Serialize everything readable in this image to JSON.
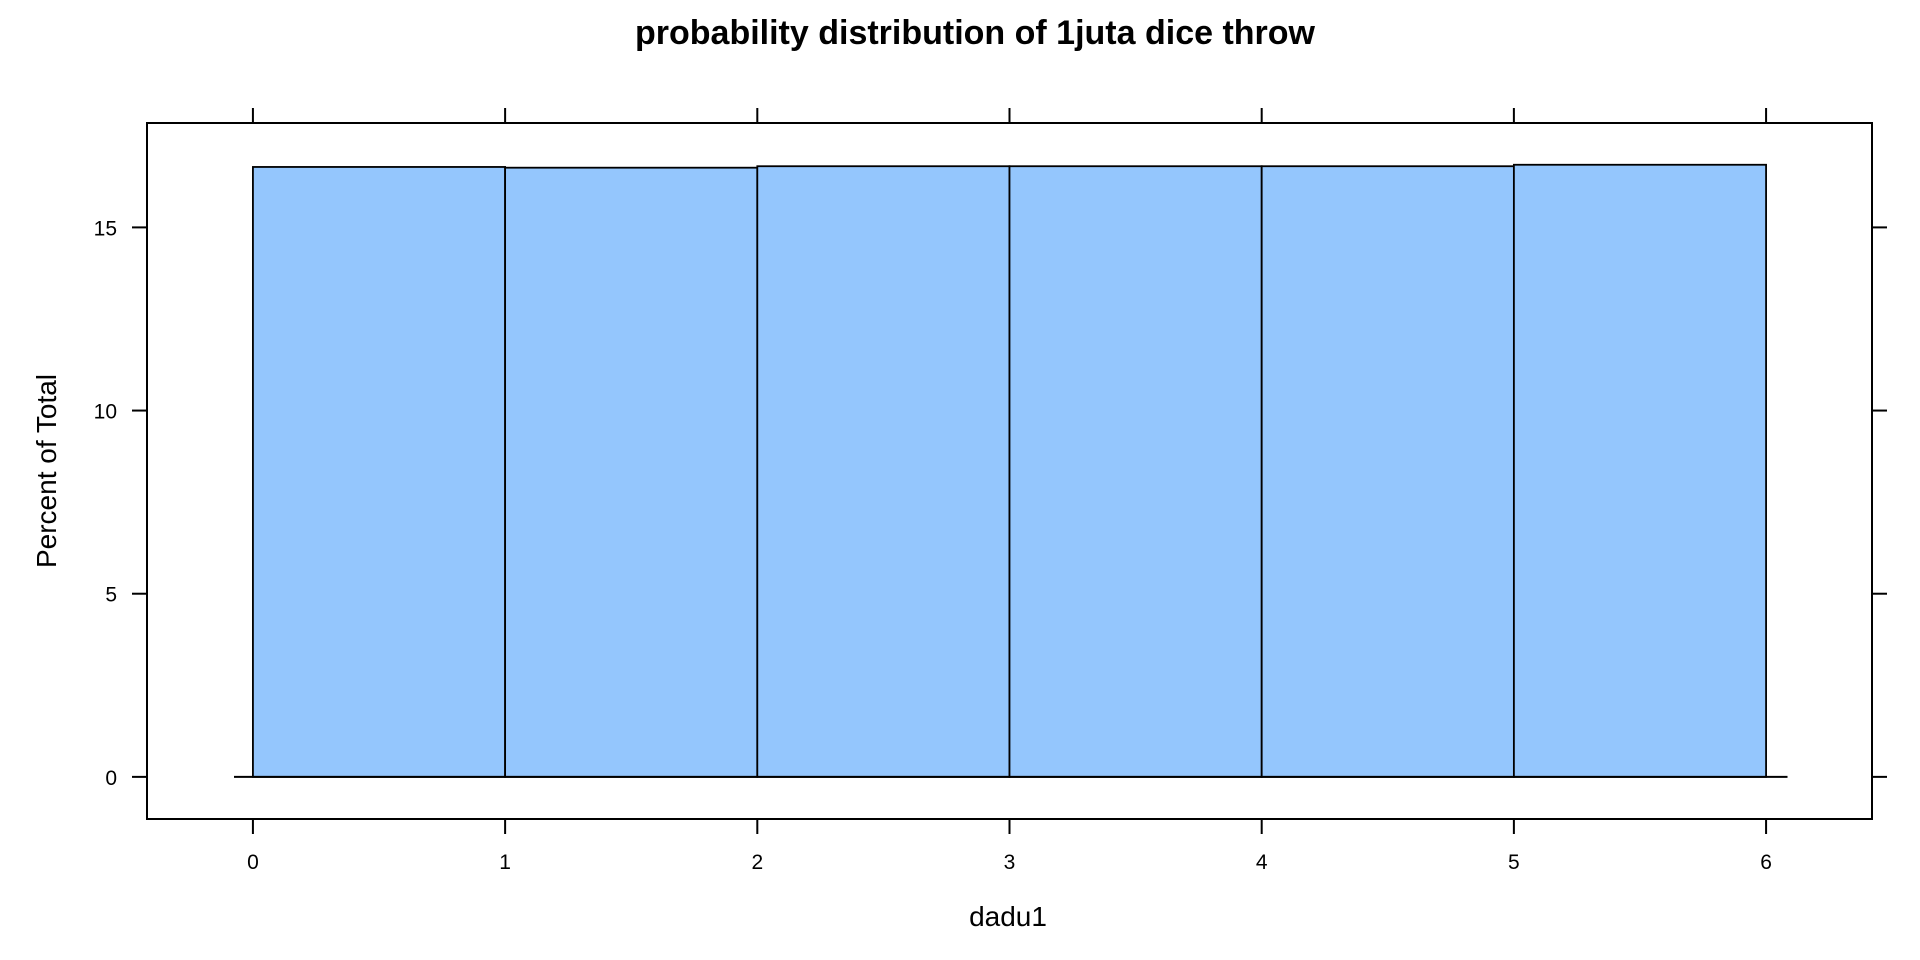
{
  "chart_data": {
    "type": "bar",
    "title": "probability distribution of 1juta dice throw",
    "xlabel": "dadu1",
    "ylabel": "Percent of Total",
    "bins": [
      {
        "from": 0,
        "to": 1,
        "value": 16.65
      },
      {
        "from": 1,
        "to": 2,
        "value": 16.63
      },
      {
        "from": 2,
        "to": 3,
        "value": 16.67
      },
      {
        "from": 3,
        "to": 4,
        "value": 16.67
      },
      {
        "from": 4,
        "to": 5,
        "value": 16.67
      },
      {
        "from": 5,
        "to": 6,
        "value": 16.71
      }
    ],
    "xlim": [
      -0.42,
      6.42
    ],
    "ylim": [
      -1.15,
      17.85
    ],
    "xticks": [
      "0",
      "1",
      "2",
      "3",
      "4",
      "5",
      "6"
    ],
    "yticks": [
      "0",
      "5",
      "10",
      "15"
    ],
    "bar_color": "#94c6fd",
    "grid": false,
    "legend": "none"
  }
}
